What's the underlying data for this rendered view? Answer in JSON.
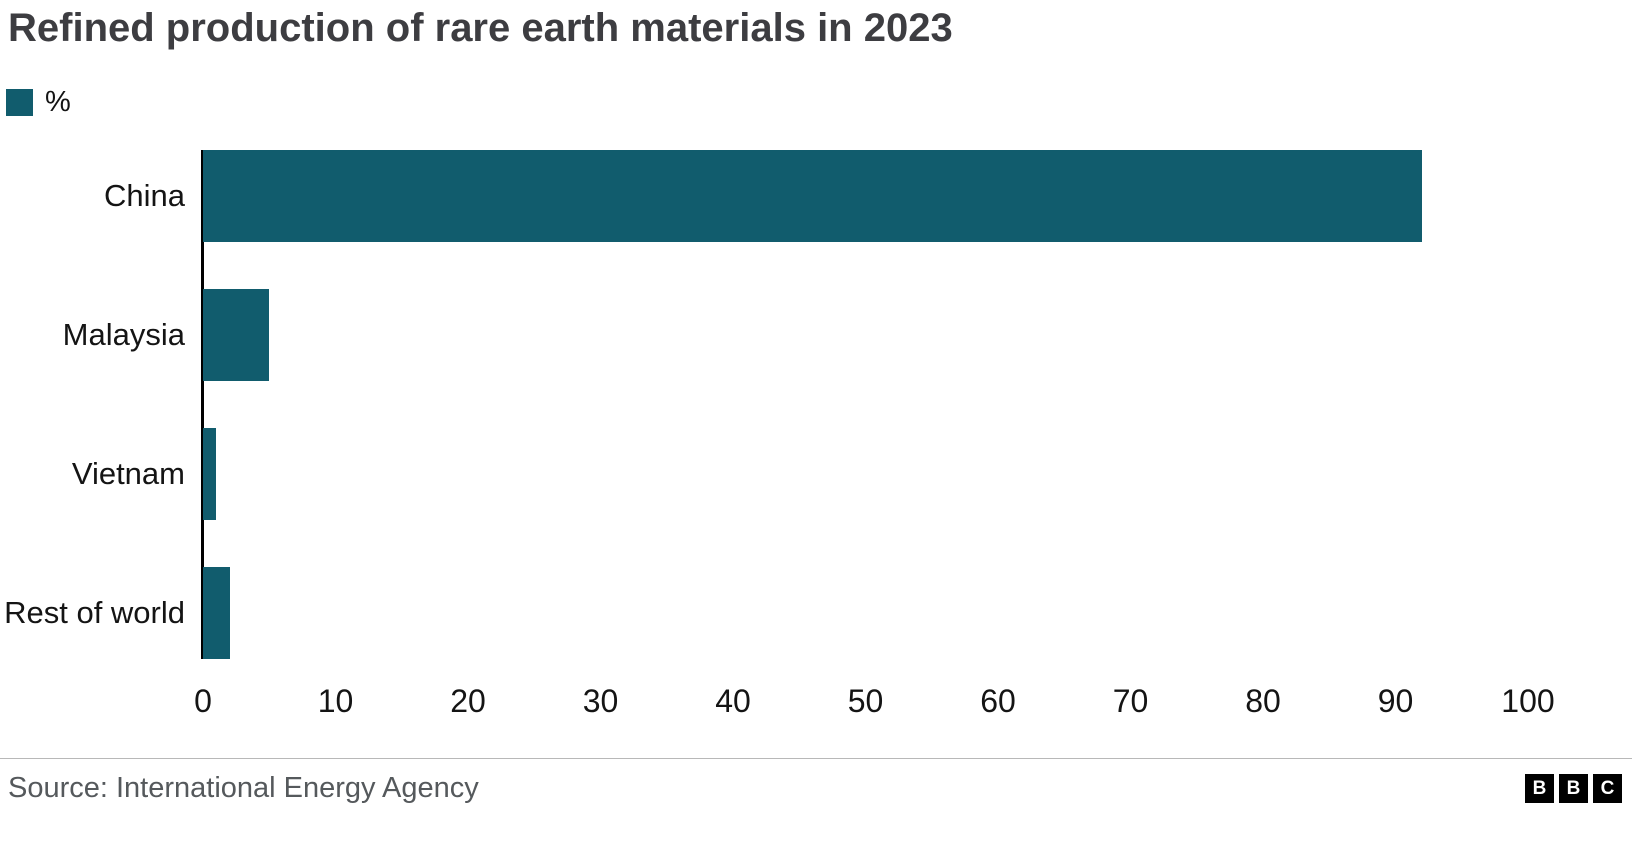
{
  "chart_data": {
    "type": "bar",
    "orientation": "horizontal",
    "title": "Refined production of rare earth materials in 2023",
    "legend_label": "%",
    "categories": [
      "China",
      "Malaysia",
      "Vietnam",
      "Rest of world"
    ],
    "values": [
      92,
      5,
      1,
      2
    ],
    "xlabel": "",
    "ylabel": "",
    "xlim": [
      0,
      100
    ],
    "x_ticks": [
      0,
      10,
      20,
      30,
      40,
      50,
      60,
      70,
      80,
      90,
      100
    ],
    "bar_color": "#115c6d",
    "grid": false,
    "legend_position": "top-left"
  },
  "footer": {
    "source": "Source: International Energy Agency",
    "logo_letters": [
      "B",
      "B",
      "C"
    ]
  }
}
